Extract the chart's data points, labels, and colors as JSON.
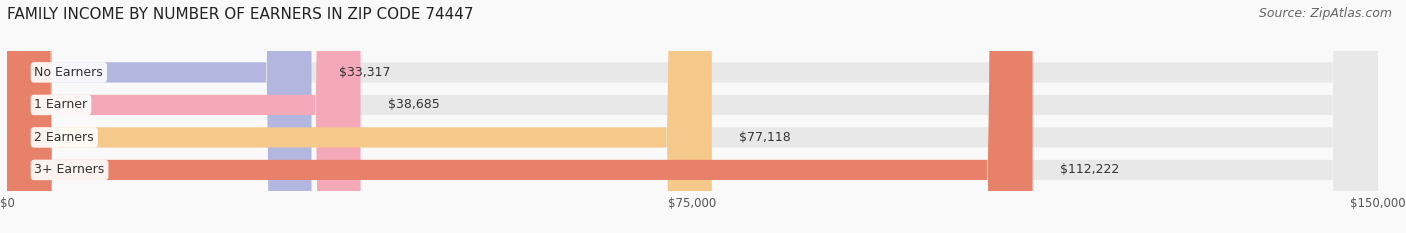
{
  "title": "FAMILY INCOME BY NUMBER OF EARNERS IN ZIP CODE 74447",
  "source": "Source: ZipAtlas.com",
  "categories": [
    "No Earners",
    "1 Earner",
    "2 Earners",
    "3+ Earners"
  ],
  "values": [
    33317,
    38685,
    77118,
    112222
  ],
  "labels": [
    "$33,317",
    "$38,685",
    "$77,118",
    "$112,222"
  ],
  "bar_colors": [
    "#b3b7e0",
    "#f4a8b8",
    "#f5c98a",
    "#e8816a"
  ],
  "bar_bg_color": "#e8e8e8",
  "xlim": [
    0,
    150000
  ],
  "xticks": [
    0,
    75000,
    150000
  ],
  "xticklabels": [
    "$0",
    "$75,000",
    "$150,000"
  ],
  "title_fontsize": 11,
  "source_fontsize": 9,
  "label_fontsize": 9,
  "cat_fontsize": 9,
  "background_color": "#f9f9f9",
  "bar_height": 0.62
}
